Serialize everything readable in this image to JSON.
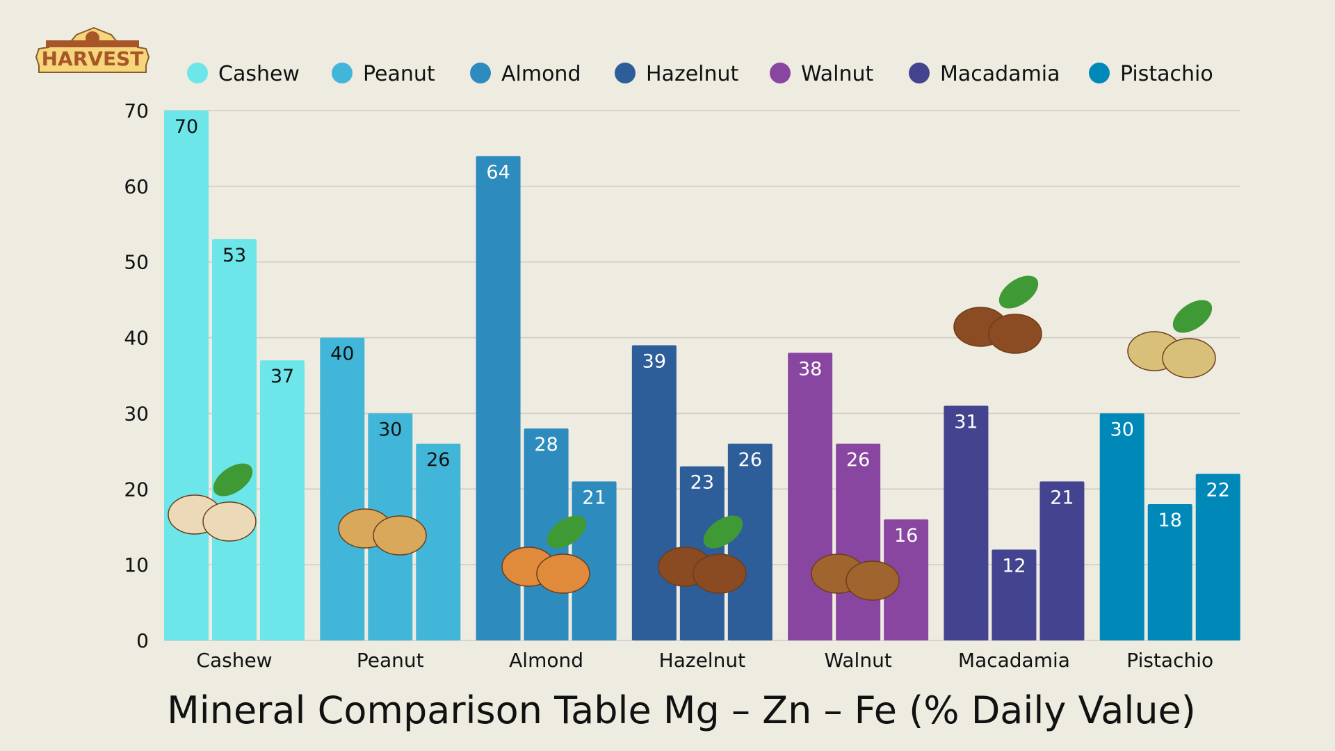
{
  "logo": {
    "text": "HARVEST"
  },
  "chart_data": {
    "type": "bar",
    "title": "Mineral Comparison Table Mg – Zn – Fe (% Daily Value)",
    "xlabel": "",
    "ylabel": "",
    "ylim": [
      0,
      70
    ],
    "yticks": [
      0,
      10,
      20,
      30,
      40,
      50,
      60,
      70
    ],
    "grid": true,
    "legend_placement": "top",
    "categories": [
      "Cashew",
      "Peanut",
      "Almond",
      "Hazelnut",
      "Walnut",
      "Macadamia",
      "Pistachio"
    ],
    "colors": [
      "#6de6ea",
      "#42b6d8",
      "#2e8bbd",
      "#2e5e9a",
      "#8846a0",
      "#43438f",
      "#0088b8"
    ],
    "label_colors": [
      "#111111",
      "#111111",
      "#ffffff",
      "#ffffff",
      "#ffffff",
      "#ffffff",
      "#ffffff"
    ],
    "values": [
      [
        70,
        53,
        37
      ],
      [
        40,
        30,
        26
      ],
      [
        64,
        28,
        21
      ],
      [
        39,
        23,
        26
      ],
      [
        38,
        26,
        16
      ],
      [
        31,
        12,
        21
      ],
      [
        30,
        18,
        22
      ]
    ],
    "legend": [
      "Cashew",
      "Peanut",
      "Almond",
      "Hazelnut",
      "Walnut",
      "Macadamia",
      "Pistachio"
    ]
  }
}
